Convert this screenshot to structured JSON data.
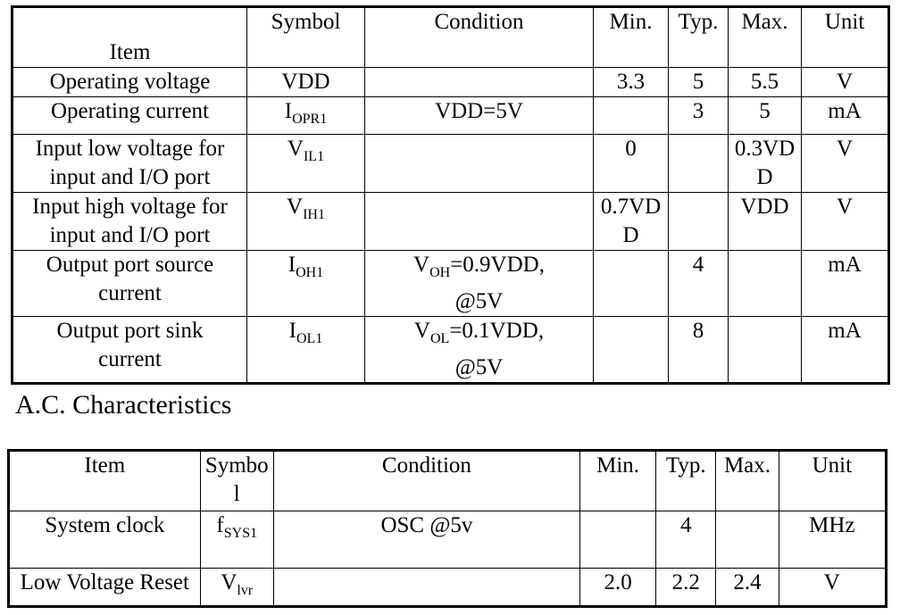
{
  "dc_table": {
    "headers": {
      "item": "Item",
      "symbol": "Symbol",
      "condition": "Condition",
      "min": "Min.",
      "typ": "Typ.",
      "max": "Max.",
      "unit": "Unit"
    },
    "rows": [
      {
        "item": "Operating voltage",
        "sym_main": "VDD",
        "sym_sub": "",
        "cond_main": "",
        "cond_sub": "",
        "cond_rest": "",
        "cond_line2": "",
        "min": "3.3",
        "typ": "5",
        "max": "5.5",
        "unit": "V"
      },
      {
        "item": "Operating current",
        "sym_main": "I",
        "sym_sub": "OPR1",
        "cond_main": "VDD=5V",
        "cond_sub": "",
        "cond_rest": "",
        "cond_line2": "",
        "min": "",
        "typ": "3",
        "max": "5",
        "unit": "mA"
      },
      {
        "item_l1": "Input low voltage for",
        "item_l2": "input and I/O port",
        "sym_main": "V",
        "sym_sub": "IL1",
        "min": "0",
        "typ": "",
        "max_l1": "0.3VD",
        "max_l2": "D",
        "unit": "V"
      },
      {
        "item_l1": "Input high voltage for",
        "item_l2": "input and I/O port",
        "sym_main": "V",
        "sym_sub": "IH1",
        "min_l1": "0.7VD",
        "min_l2": "D",
        "typ": "",
        "max": "VDD",
        "unit": "V"
      },
      {
        "item_l1": "Output port source",
        "item_l2": "current",
        "sym_main": "I",
        "sym_sub": "OH1",
        "cond_main": "V",
        "cond_sub": "OH",
        "cond_rest": "=0.9VDD,",
        "cond_line2": "@5V",
        "min": "",
        "typ": "4",
        "max": "",
        "unit": "mA"
      },
      {
        "item_l1": "Output port sink",
        "item_l2": "current",
        "sym_main": "I",
        "sym_sub": "OL1",
        "cond_main": "V",
        "cond_sub": "OL",
        "cond_rest": "=0.1VDD,",
        "cond_line2": "@5V",
        "min": "",
        "typ": "8",
        "max": "",
        "unit": "mA"
      }
    ]
  },
  "ac_heading": "A.C. Characteristics",
  "ac_table": {
    "headers": {
      "item": "Item",
      "symbol_l1": "Symbo",
      "symbol_l2": "l",
      "condition": "Condition",
      "min": "Min.",
      "typ": "Typ.",
      "max": "Max.",
      "unit": "Unit"
    },
    "rows": [
      {
        "item": "System clock",
        "sym_main": "f",
        "sym_sub": "SYS1",
        "cond": "OSC @5v",
        "min": "",
        "typ": "4",
        "max": "",
        "unit": "MHz"
      },
      {
        "item": "Low Voltage Reset",
        "sym_main": "V",
        "sym_sub": "lvr",
        "cond": "",
        "min": "2.0",
        "typ": "2.2",
        "max": "2.4",
        "unit": "V"
      }
    ]
  }
}
